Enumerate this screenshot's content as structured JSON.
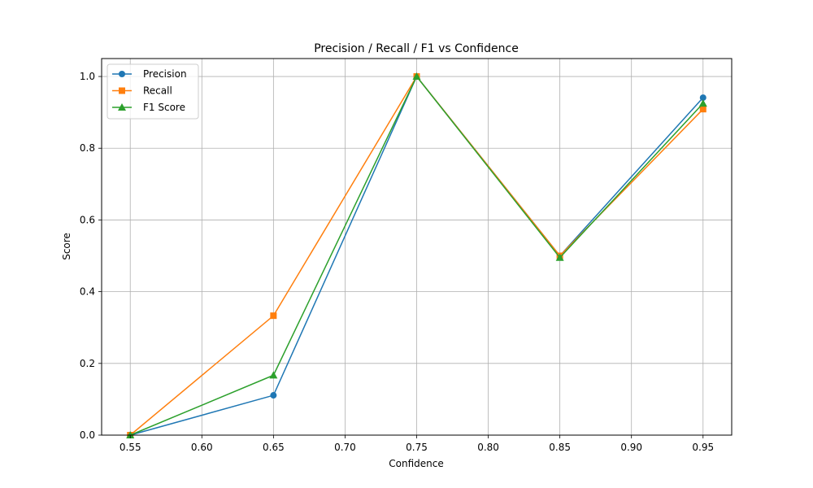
{
  "chart_data": {
    "type": "line",
    "title": "Precision / Recall / F1 vs Confidence",
    "xlabel": "Confidence",
    "ylabel": "Score",
    "x": [
      0.55,
      0.65,
      0.75,
      0.85,
      0.95
    ],
    "xlim": [
      0.53,
      0.97
    ],
    "ylim": [
      0,
      1.05
    ],
    "xticks": [
      "0.55",
      "0.60",
      "0.65",
      "0.70",
      "0.75",
      "0.80",
      "0.85",
      "0.90",
      "0.95"
    ],
    "xtick_values": [
      0.55,
      0.6,
      0.65,
      0.7,
      0.75,
      0.8,
      0.85,
      0.9,
      0.95
    ],
    "yticks": [
      "0.0",
      "0.2",
      "0.4",
      "0.6",
      "0.8",
      "1.0"
    ],
    "ytick_values": [
      0.0,
      0.2,
      0.4,
      0.6,
      0.8,
      1.0
    ],
    "grid": true,
    "legend_position": "top-left",
    "series": [
      {
        "name": "Precision",
        "values": [
          0.0,
          0.111,
          1.0,
          0.5,
          0.941
        ],
        "color": "#1f77b4",
        "marker": "circle"
      },
      {
        "name": "Recall",
        "values": [
          0.0,
          0.333,
          1.0,
          0.5,
          0.909
        ],
        "color": "#ff7f0e",
        "marker": "square"
      },
      {
        "name": "F1 Score",
        "values": [
          0.0,
          0.167,
          1.0,
          0.495,
          0.925
        ],
        "color": "#2ca02c",
        "marker": "triangle"
      }
    ]
  }
}
